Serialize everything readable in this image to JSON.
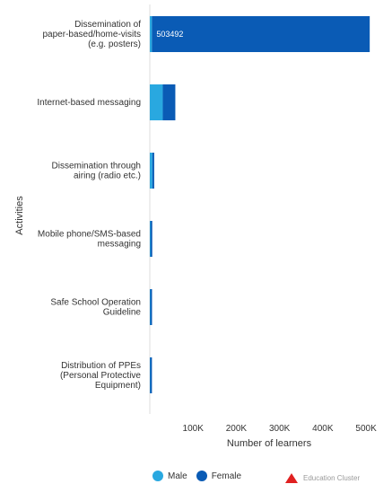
{
  "chart_data": {
    "type": "bar",
    "orientation": "horizontal",
    "stacked": true,
    "categories": [
      "Dissemination of paper-based/home-visits (e.g. posters)",
      "Internet-based messaging",
      "Dissemination through airing (radio etc.)",
      "Mobile phone/SMS-based messaging",
      "Safe School Operation Guideline",
      "Distribution of PPEs (Personal Protective Equipment)"
    ],
    "category_lines": [
      [
        "Dissemination of",
        "paper-based/home-visits",
        "(e.g. posters)"
      ],
      [
        "Internet-based messaging"
      ],
      [
        "Dissemination through",
        "airing (radio etc.)"
      ],
      [
        "Mobile phone/SMS-based",
        "messaging"
      ],
      [
        "Safe School Operation",
        "Guideline"
      ],
      [
        "Distribution of PPEs",
        "(Personal Protective",
        "Equipment)"
      ]
    ],
    "series": [
      {
        "name": "Male",
        "color": "#29a8e0",
        "values": [
          5000,
          30000,
          6000,
          1500,
          1000,
          800
        ]
      },
      {
        "name": "Female",
        "color": "#0a5bb5",
        "values": [
          503492,
          29000,
          4000,
          1500,
          1500,
          800
        ]
      }
    ],
    "data_labels": [
      {
        "category_index": 0,
        "series": "Female",
        "text": "503492"
      }
    ],
    "xlabel": "Number of learners",
    "ylabel": "Activities",
    "xticks": [
      100000,
      200000,
      300000,
      400000,
      500000
    ],
    "xtick_labels": [
      "100K",
      "200K",
      "300K",
      "400K",
      "500K"
    ],
    "xlim": [
      0,
      560000
    ],
    "grid": false,
    "legend_position": "bottom"
  },
  "branding": {
    "logo_text": "Education Cluster"
  }
}
